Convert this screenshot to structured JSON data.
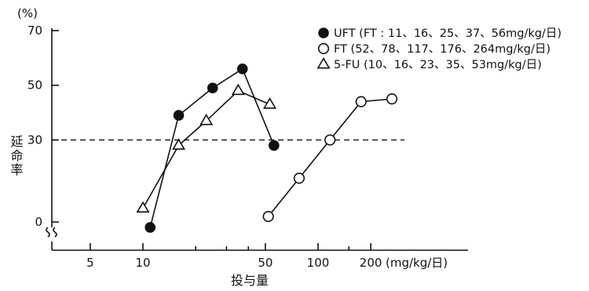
{
  "chart_data": {
    "type": "line",
    "xscale": "log",
    "xlabel": "投与量",
    "xunit": "(mg/kg/日)",
    "ylabel": "延命率",
    "yunit": "(%)",
    "xlim": [
      2.7,
      600
    ],
    "ylim": [
      -5,
      72
    ],
    "x_ticks": [
      5,
      10,
      50,
      100,
      200
    ],
    "x_tick_labels": [
      "5",
      "10",
      "50",
      "100",
      "200"
    ],
    "y_ticks": [
      0,
      30,
      50,
      70
    ],
    "y_tick_labels": [
      "0",
      "30",
      "50",
      "70"
    ],
    "reference_line": {
      "y": 30,
      "style": "dashed"
    },
    "axis_break": "y-bottom",
    "legend_position": "top-right",
    "series": [
      {
        "name": "UFT (FT : 11、16、25、37、56mg/kg/日)",
        "marker": "filled-circle",
        "x": [
          11,
          16,
          25,
          37,
          56
        ],
        "y": [
          -2,
          39,
          49,
          56,
          28
        ]
      },
      {
        "name": "FT (52、78、117、176、264mg/kg/日)",
        "marker": "open-circle",
        "x": [
          52,
          78,
          117,
          176,
          264
        ],
        "y": [
          2,
          16,
          30,
          44,
          45
        ]
      },
      {
        "name": "5-FU (10、16、23、35、53mg/kg/日)",
        "marker": "open-triangle",
        "x": [
          10,
          16,
          23,
          35,
          53
        ],
        "y": [
          5,
          28,
          37,
          48,
          43
        ]
      }
    ]
  }
}
